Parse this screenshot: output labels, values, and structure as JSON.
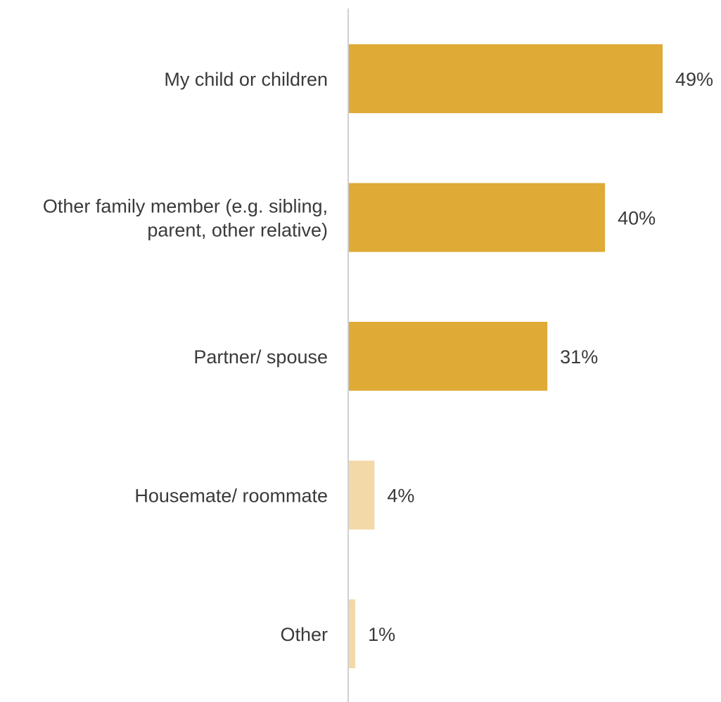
{
  "chart_data": {
    "type": "bar",
    "orientation": "horizontal",
    "categories": [
      [
        "My child or children"
      ],
      [
        "Other family member (e.g. sibling,",
        "parent, other relative)"
      ],
      [
        "Partner/ spouse"
      ],
      [
        "Housemate/ roommate"
      ],
      [
        "Other"
      ]
    ],
    "values": [
      49,
      40,
      31,
      4,
      1
    ],
    "value_labels": [
      "49%",
      "40%",
      "31%",
      "4%",
      "1%"
    ],
    "unit": "%",
    "title": "",
    "xlabel": "",
    "ylabel": "",
    "xlim": [
      0,
      49
    ],
    "grid": false,
    "legend": "none",
    "colors": {
      "highlight": "#DFAA35",
      "muted": "#F3D9A8",
      "axis": "#d0d0d0",
      "text": "#3a3a3a"
    },
    "highlighted": [
      true,
      true,
      true,
      false,
      false
    ]
  }
}
